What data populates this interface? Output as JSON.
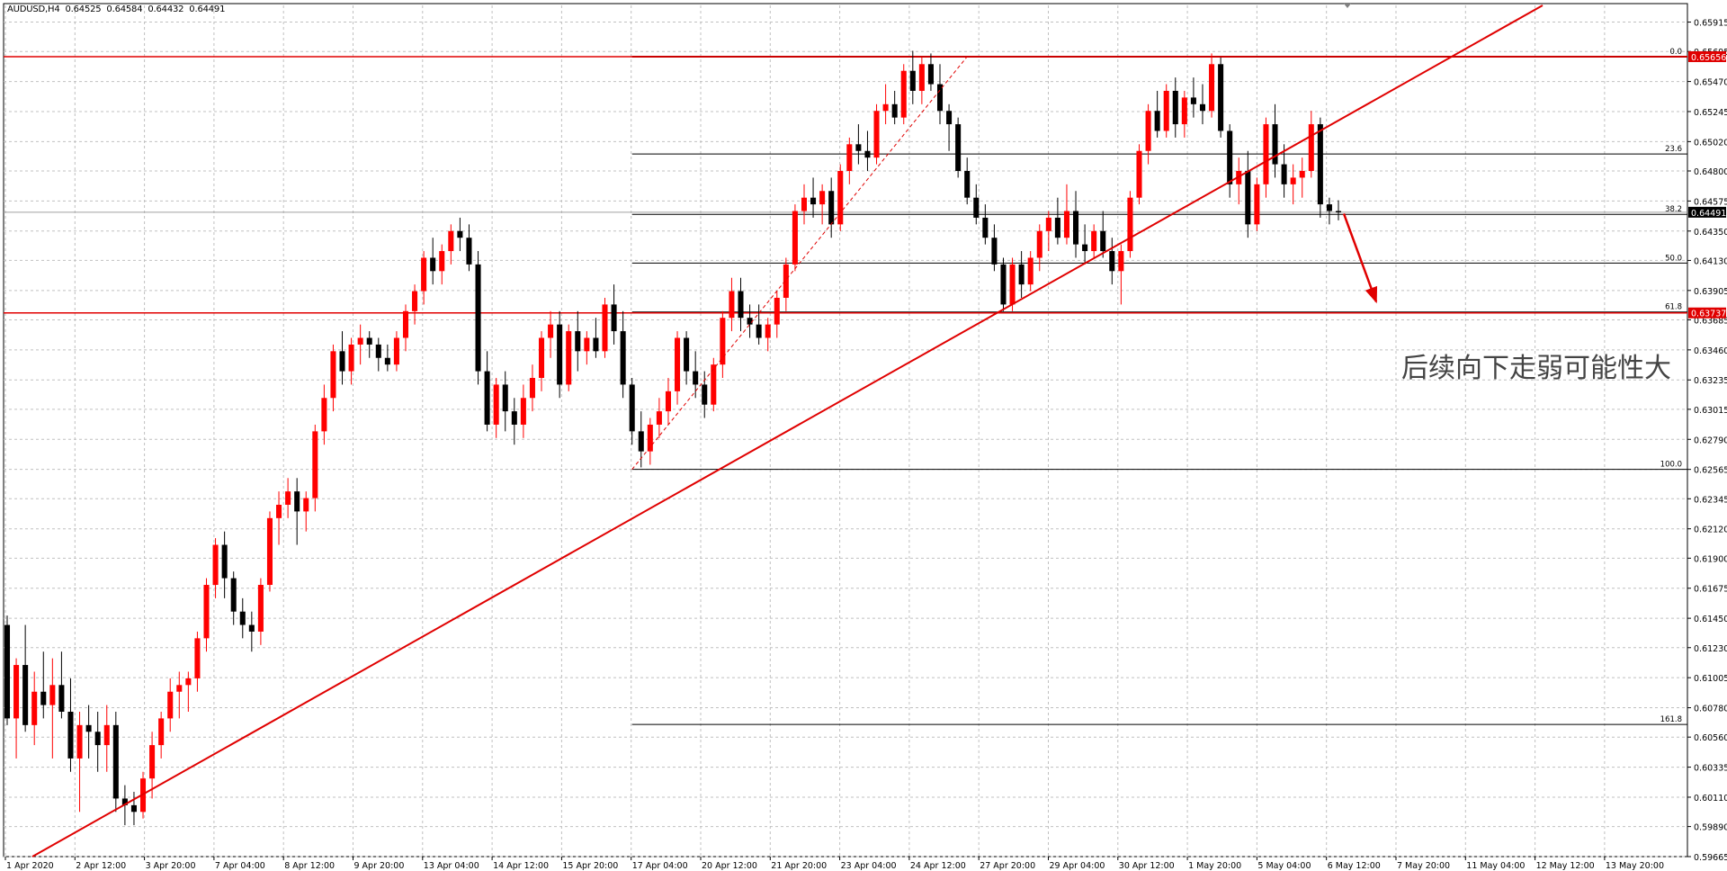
{
  "header": {
    "symbol": "AUDUSD,H4",
    "ohlc": [
      "0.64525",
      "0.64584",
      "0.64432",
      "0.64491"
    ]
  },
  "annotation": "后续向下走弱可能性大",
  "colors": {
    "background": "#ffffff",
    "grid": "#c0c0c0",
    "bull": "#ff0000",
    "bear": "#000000",
    "trendline": "#e00000",
    "horizontal_line": "#e00000",
    "fib_line": "#000000",
    "fib_top_line": "#8b0000",
    "price_badge": "#e00000",
    "current_price_badge": "#000000"
  },
  "chart_data": {
    "type": "candlestick",
    "title": "",
    "xlabel": "",
    "ylabel": "",
    "ylim": [
      0.59665,
      0.6604
    ],
    "grid": true,
    "y_ticks": [
      "0.65915",
      "0.65695",
      "0.65470",
      "0.65245",
      "0.65020",
      "0.64800",
      "0.64575",
      "0.64350",
      "0.64130",
      "0.63905",
      "0.63685",
      "0.63460",
      "0.63235",
      "0.63015",
      "0.62790",
      "0.62565",
      "0.62345",
      "0.62120",
      "0.61900",
      "0.61675",
      "0.61450",
      "0.61230",
      "0.61005",
      "0.60780",
      "0.60560",
      "0.60335",
      "0.60110",
      "0.59890",
      "0.59665"
    ],
    "x_ticks": [
      "1 Apr 2020",
      "2 Apr 12:00",
      "3 Apr 20:00",
      "7 Apr 04:00",
      "8 Apr 12:00",
      "9 Apr 20:00",
      "13 Apr 04:00",
      "14 Apr 12:00",
      "15 Apr 20:00",
      "17 Apr 04:00",
      "20 Apr 12:00",
      "21 Apr 20:00",
      "23 Apr 04:00",
      "24 Apr 12:00",
      "27 Apr 20:00",
      "29 Apr 04:00",
      "30 Apr 12:00",
      "1 May 20:00",
      "5 May 04:00",
      "6 May 12:00",
      "7 May 20:00",
      "11 May 04:00",
      "12 May 12:00",
      "13 May 20:00"
    ],
    "current_price": "0.64491",
    "horizontal_levels": [
      {
        "price": 0.65656,
        "label": "0.65656"
      },
      {
        "price": 0.63737,
        "label": "0.63737"
      }
    ],
    "fibonacci": {
      "high": 0.65656,
      "low": 0.62565,
      "levels": [
        {
          "ratio": "0.0",
          "price": 0.65656
        },
        {
          "ratio": "23.6",
          "price": 0.64927
        },
        {
          "ratio": "38.2",
          "price": 0.64475
        },
        {
          "ratio": "50.0",
          "price": 0.6411
        },
        {
          "ratio": "61.8",
          "price": 0.63744
        },
        {
          "ratio": "100.0",
          "price": 0.62565
        },
        {
          "ratio": "161.8",
          "price": 0.60655
        }
      ]
    },
    "trendline": {
      "from_price": 0.59665,
      "to_price": 0.6604
    },
    "projection_arrow": {
      "from_price": 0.6448,
      "to_price": 0.6378
    },
    "candles": [
      [
        0.614,
        0.6147,
        0.6065,
        0.607
      ],
      [
        0.607,
        0.6115,
        0.604,
        0.611
      ],
      [
        0.611,
        0.614,
        0.606,
        0.6065
      ],
      [
        0.6065,
        0.6105,
        0.605,
        0.609
      ],
      [
        0.609,
        0.612,
        0.607,
        0.608
      ],
      [
        0.608,
        0.6115,
        0.604,
        0.6095
      ],
      [
        0.6095,
        0.612,
        0.607,
        0.6075
      ],
      [
        0.6075,
        0.61,
        0.603,
        0.604
      ],
      [
        0.604,
        0.6075,
        0.6,
        0.6065
      ],
      [
        0.6065,
        0.608,
        0.604,
        0.606
      ],
      [
        0.606,
        0.6075,
        0.603,
        0.605
      ],
      [
        0.605,
        0.608,
        0.603,
        0.6065
      ],
      [
        0.6065,
        0.6075,
        0.6,
        0.601
      ],
      [
        0.601,
        0.602,
        0.599,
        0.6005
      ],
      [
        0.6005,
        0.6015,
        0.599,
        0.6
      ],
      [
        0.6,
        0.603,
        0.5995,
        0.6025
      ],
      [
        0.6025,
        0.606,
        0.601,
        0.605
      ],
      [
        0.605,
        0.6075,
        0.604,
        0.607
      ],
      [
        0.607,
        0.61,
        0.606,
        0.609
      ],
      [
        0.609,
        0.6105,
        0.607,
        0.6095
      ],
      [
        0.6095,
        0.6105,
        0.6075,
        0.61
      ],
      [
        0.61,
        0.6135,
        0.609,
        0.613
      ],
      [
        0.613,
        0.6175,
        0.612,
        0.617
      ],
      [
        0.617,
        0.6205,
        0.616,
        0.62
      ],
      [
        0.62,
        0.621,
        0.616,
        0.6175
      ],
      [
        0.6175,
        0.618,
        0.614,
        0.615
      ],
      [
        0.615,
        0.616,
        0.613,
        0.614
      ],
      [
        0.614,
        0.615,
        0.612,
        0.6135
      ],
      [
        0.6135,
        0.6175,
        0.6125,
        0.617
      ],
      [
        0.617,
        0.6225,
        0.6165,
        0.622
      ],
      [
        0.622,
        0.624,
        0.62,
        0.623
      ],
      [
        0.623,
        0.625,
        0.622,
        0.624
      ],
      [
        0.624,
        0.625,
        0.62,
        0.6225
      ],
      [
        0.6225,
        0.624,
        0.621,
        0.6235
      ],
      [
        0.6235,
        0.629,
        0.6225,
        0.6285
      ],
      [
        0.6285,
        0.632,
        0.6275,
        0.631
      ],
      [
        0.631,
        0.635,
        0.63,
        0.6345
      ],
      [
        0.6345,
        0.636,
        0.632,
        0.633
      ],
      [
        0.633,
        0.6355,
        0.632,
        0.635
      ],
      [
        0.635,
        0.6365,
        0.6335,
        0.6355
      ],
      [
        0.6355,
        0.636,
        0.634,
        0.635
      ],
      [
        0.635,
        0.6355,
        0.633,
        0.634
      ],
      [
        0.634,
        0.635,
        0.633,
        0.6335
      ],
      [
        0.6335,
        0.636,
        0.633,
        0.6355
      ],
      [
        0.6355,
        0.638,
        0.6345,
        0.6375
      ],
      [
        0.6375,
        0.6395,
        0.6365,
        0.639
      ],
      [
        0.639,
        0.642,
        0.638,
        0.6415
      ],
      [
        0.6415,
        0.643,
        0.6395,
        0.6405
      ],
      [
        0.6405,
        0.6425,
        0.6395,
        0.642
      ],
      [
        0.642,
        0.644,
        0.641,
        0.6435
      ],
      [
        0.6435,
        0.6445,
        0.642,
        0.643
      ],
      [
        0.643,
        0.644,
        0.6405,
        0.641
      ],
      [
        0.641,
        0.642,
        0.632,
        0.633
      ],
      [
        0.633,
        0.6345,
        0.6285,
        0.629
      ],
      [
        0.629,
        0.6325,
        0.628,
        0.632
      ],
      [
        0.632,
        0.633,
        0.6285,
        0.63
      ],
      [
        0.63,
        0.631,
        0.6275,
        0.629
      ],
      [
        0.629,
        0.632,
        0.628,
        0.631
      ],
      [
        0.631,
        0.6335,
        0.63,
        0.6325
      ],
      [
        0.6325,
        0.636,
        0.6315,
        0.6355
      ],
      [
        0.6355,
        0.6375,
        0.634,
        0.6365
      ],
      [
        0.6365,
        0.6375,
        0.631,
        0.632
      ],
      [
        0.632,
        0.6365,
        0.6315,
        0.636
      ],
      [
        0.636,
        0.6375,
        0.633,
        0.6345
      ],
      [
        0.6345,
        0.636,
        0.6335,
        0.6355
      ],
      [
        0.6355,
        0.637,
        0.634,
        0.6345
      ],
      [
        0.6345,
        0.6385,
        0.634,
        0.638
      ],
      [
        0.638,
        0.6395,
        0.635,
        0.636
      ],
      [
        0.636,
        0.6375,
        0.631,
        0.632
      ],
      [
        0.632,
        0.6325,
        0.6275,
        0.6285
      ],
      [
        0.6285,
        0.63,
        0.6258,
        0.627
      ],
      [
        0.627,
        0.6295,
        0.626,
        0.629
      ],
      [
        0.629,
        0.631,
        0.628,
        0.63
      ],
      [
        0.63,
        0.6325,
        0.629,
        0.6315
      ],
      [
        0.6315,
        0.636,
        0.6305,
        0.6355
      ],
      [
        0.6355,
        0.636,
        0.632,
        0.633
      ],
      [
        0.633,
        0.6345,
        0.631,
        0.632
      ],
      [
        0.632,
        0.633,
        0.6295,
        0.6305
      ],
      [
        0.6305,
        0.634,
        0.63,
        0.6335
      ],
      [
        0.6335,
        0.6375,
        0.6325,
        0.637
      ],
      [
        0.637,
        0.64,
        0.636,
        0.639
      ],
      [
        0.639,
        0.64,
        0.636,
        0.637
      ],
      [
        0.637,
        0.638,
        0.6355,
        0.6365
      ],
      [
        0.6365,
        0.638,
        0.635,
        0.6355
      ],
      [
        0.6355,
        0.637,
        0.6345,
        0.6365
      ],
      [
        0.6365,
        0.639,
        0.6355,
        0.6385
      ],
      [
        0.6385,
        0.6415,
        0.6375,
        0.641
      ],
      [
        0.641,
        0.6455,
        0.6405,
        0.645
      ],
      [
        0.645,
        0.647,
        0.644,
        0.646
      ],
      [
        0.646,
        0.6475,
        0.6445,
        0.6455
      ],
      [
        0.6455,
        0.647,
        0.644,
        0.6465
      ],
      [
        0.6465,
        0.6475,
        0.643,
        0.644
      ],
      [
        0.644,
        0.6485,
        0.6435,
        0.648
      ],
      [
        0.648,
        0.6505,
        0.647,
        0.65
      ],
      [
        0.65,
        0.6515,
        0.6485,
        0.6495
      ],
      [
        0.6495,
        0.651,
        0.648,
        0.649
      ],
      [
        0.649,
        0.653,
        0.6485,
        0.6525
      ],
      [
        0.6525,
        0.6545,
        0.6515,
        0.653
      ],
      [
        0.653,
        0.654,
        0.6515,
        0.652
      ],
      [
        0.652,
        0.656,
        0.6515,
        0.6555
      ],
      [
        0.6555,
        0.657,
        0.653,
        0.654
      ],
      [
        0.654,
        0.6565,
        0.653,
        0.656
      ],
      [
        0.656,
        0.6568,
        0.654,
        0.6545
      ],
      [
        0.6545,
        0.656,
        0.6515,
        0.6525
      ],
      [
        0.6525,
        0.653,
        0.6495,
        0.6515
      ],
      [
        0.6515,
        0.652,
        0.6475,
        0.648
      ],
      [
        0.648,
        0.649,
        0.6455,
        0.646
      ],
      [
        0.646,
        0.647,
        0.644,
        0.6445
      ],
      [
        0.6445,
        0.6455,
        0.6425,
        0.643
      ],
      [
        0.643,
        0.644,
        0.6405,
        0.641
      ],
      [
        0.641,
        0.6415,
        0.6375,
        0.638
      ],
      [
        0.638,
        0.6415,
        0.6375,
        0.641
      ],
      [
        0.641,
        0.642,
        0.6385,
        0.6395
      ],
      [
        0.6395,
        0.642,
        0.639,
        0.6415
      ],
      [
        0.6415,
        0.644,
        0.6405,
        0.6435
      ],
      [
        0.6435,
        0.645,
        0.642,
        0.6445
      ],
      [
        0.6445,
        0.646,
        0.6425,
        0.643
      ],
      [
        0.643,
        0.647,
        0.6425,
        0.645
      ],
      [
        0.645,
        0.6465,
        0.6415,
        0.6425
      ],
      [
        0.6425,
        0.644,
        0.641,
        0.642
      ],
      [
        0.642,
        0.644,
        0.6415,
        0.6435
      ],
      [
        0.6435,
        0.645,
        0.6415,
        0.642
      ],
      [
        0.642,
        0.643,
        0.6395,
        0.6405
      ],
      [
        0.6405,
        0.6425,
        0.638,
        0.642
      ],
      [
        0.642,
        0.6465,
        0.6415,
        0.646
      ],
      [
        0.646,
        0.65,
        0.6455,
        0.6495
      ],
      [
        0.6495,
        0.653,
        0.6485,
        0.6525
      ],
      [
        0.6525,
        0.654,
        0.6505,
        0.651
      ],
      [
        0.651,
        0.6545,
        0.6505,
        0.654
      ],
      [
        0.654,
        0.655,
        0.6505,
        0.6515
      ],
      [
        0.6515,
        0.654,
        0.6505,
        0.6535
      ],
      [
        0.6535,
        0.655,
        0.652,
        0.653
      ],
      [
        0.653,
        0.6545,
        0.6515,
        0.6525
      ],
      [
        0.6525,
        0.6568,
        0.652,
        0.656
      ],
      [
        0.656,
        0.6565,
        0.6505,
        0.651
      ],
      [
        0.651,
        0.6515,
        0.646,
        0.647
      ],
      [
        0.647,
        0.649,
        0.6455,
        0.648
      ],
      [
        0.648,
        0.6495,
        0.643,
        0.644
      ],
      [
        0.644,
        0.6475,
        0.6435,
        0.647
      ],
      [
        0.647,
        0.652,
        0.646,
        0.6515
      ],
      [
        0.6515,
        0.653,
        0.6475,
        0.6485
      ],
      [
        0.6485,
        0.65,
        0.646,
        0.647
      ],
      [
        0.647,
        0.6485,
        0.6455,
        0.6475
      ],
      [
        0.6475,
        0.649,
        0.646,
        0.648
      ],
      [
        0.648,
        0.6525,
        0.6475,
        0.6515
      ],
      [
        0.6515,
        0.652,
        0.6445,
        0.6455
      ],
      [
        0.6455,
        0.646,
        0.644,
        0.645
      ],
      [
        0.645,
        0.6458,
        0.6443,
        0.6449
      ]
    ]
  }
}
